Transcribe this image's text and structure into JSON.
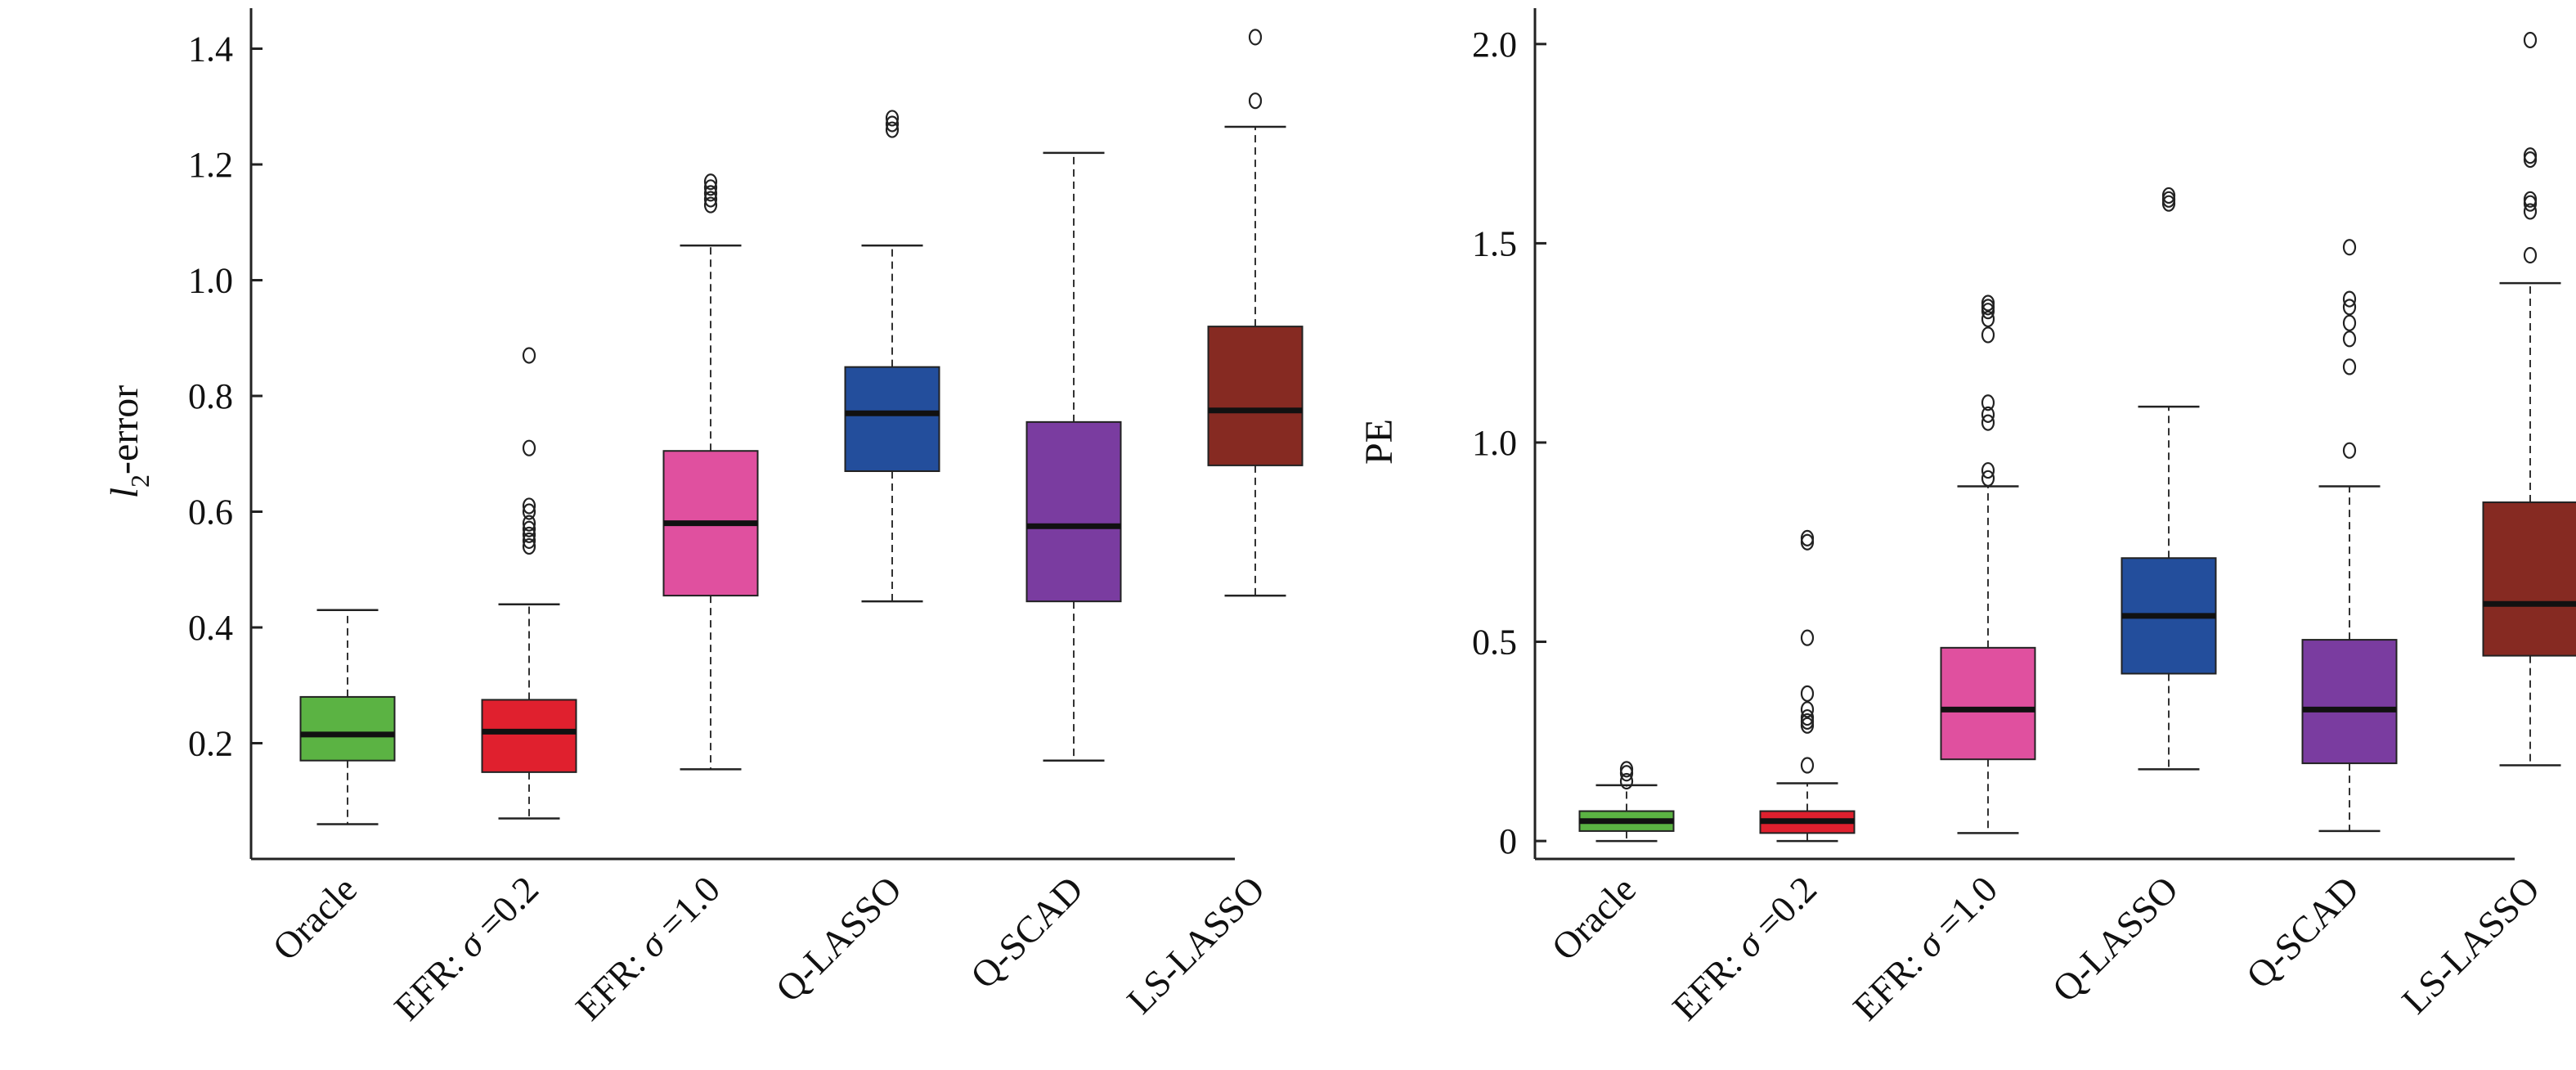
{
  "chart_data": [
    {
      "type": "box",
      "ylabel": "l",
      "ylabel_subscript": "2",
      "ylabel_suffix": "-error",
      "ylim": [
        0.0,
        1.47
      ],
      "yticks": [
        0.2,
        0.4,
        0.6,
        0.8,
        1.0,
        1.2,
        1.4
      ],
      "ytick_labels": [
        "0.2",
        "0.4",
        "0.6",
        "0.8",
        "1.0",
        "1.2",
        "1.4"
      ],
      "categories": [
        {
          "prefix": "Oracle",
          "sigma": "",
          "suffix": ""
        },
        {
          "prefix": "EFR: ",
          "sigma": "σ",
          "suffix": " =0.2"
        },
        {
          "prefix": "EFR: ",
          "sigma": "σ",
          "suffix": " =1.0"
        },
        {
          "prefix": "Q-LASSO",
          "sigma": "",
          "suffix": ""
        },
        {
          "prefix": "Q-SCAD",
          "sigma": "",
          "suffix": ""
        },
        {
          "prefix": "LS-LASSO",
          "sigma": "",
          "suffix": ""
        }
      ],
      "boxes": [
        {
          "color": "#5bb343",
          "whisker_low": 0.06,
          "q1": 0.17,
          "median": 0.215,
          "q3": 0.28,
          "whisker_high": 0.43,
          "outliers": []
        },
        {
          "color": "#e0202e",
          "whisker_low": 0.07,
          "q1": 0.15,
          "median": 0.22,
          "q3": 0.275,
          "whisker_high": 0.44,
          "outliers": [
            0.54,
            0.55,
            0.56,
            0.57,
            0.58,
            0.6,
            0.61,
            0.71,
            0.87
          ]
        },
        {
          "color": "#e0509f",
          "whisker_low": 0.155,
          "q1": 0.455,
          "median": 0.58,
          "q3": 0.705,
          "whisker_high": 1.06,
          "outliers": [
            1.13,
            1.14,
            1.15,
            1.16,
            1.17
          ]
        },
        {
          "color": "#234e9c",
          "whisker_low": 0.445,
          "q1": 0.67,
          "median": 0.77,
          "q3": 0.85,
          "whisker_high": 1.06,
          "outliers": [
            1.26,
            1.27,
            1.28
          ]
        },
        {
          "color": "#7a3ca0",
          "whisker_low": 0.17,
          "q1": 0.445,
          "median": 0.575,
          "q3": 0.755,
          "whisker_high": 1.22,
          "outliers": []
        },
        {
          "color": "#862a22",
          "whisker_low": 0.455,
          "q1": 0.68,
          "median": 0.775,
          "q3": 0.92,
          "whisker_high": 1.265,
          "outliers": [
            1.31,
            1.42
          ]
        }
      ]
    },
    {
      "type": "box",
      "ylabel": "PE",
      "ylabel_subscript": "",
      "ylabel_suffix": "",
      "ylim": [
        -0.045,
        2.09
      ],
      "yticks": [
        0.0,
        0.5,
        1.0,
        1.5,
        2.0
      ],
      "ytick_labels": [
        "0",
        "0.5",
        "1.0",
        "1.5",
        "2.0"
      ],
      "categories": [
        {
          "prefix": "Oracle",
          "sigma": "",
          "suffix": ""
        },
        {
          "prefix": "EFR: ",
          "sigma": "σ",
          "suffix": " =0.2"
        },
        {
          "prefix": "EFR: ",
          "sigma": "σ",
          "suffix": " =1.0"
        },
        {
          "prefix": "Q-LASSO",
          "sigma": "",
          "suffix": ""
        },
        {
          "prefix": "Q-SCAD",
          "sigma": "",
          "suffix": ""
        },
        {
          "prefix": "LS-LASSO",
          "sigma": "",
          "suffix": ""
        }
      ],
      "boxes": [
        {
          "color": "#5bb343",
          "whisker_low": 0.0,
          "q1": 0.025,
          "median": 0.05,
          "q3": 0.075,
          "whisker_high": 0.14,
          "outliers": [
            0.15,
            0.17,
            0.18
          ]
        },
        {
          "color": "#e0202e",
          "whisker_low": 0.0,
          "q1": 0.02,
          "median": 0.05,
          "q3": 0.075,
          "whisker_high": 0.145,
          "outliers": [
            0.19,
            0.29,
            0.3,
            0.31,
            0.33,
            0.37,
            0.51,
            0.75,
            0.76
          ]
        },
        {
          "color": "#e0509f",
          "whisker_low": 0.02,
          "q1": 0.205,
          "median": 0.33,
          "q3": 0.485,
          "whisker_high": 0.89,
          "outliers": [
            0.91,
            0.93,
            1.05,
            1.07,
            1.1,
            1.27,
            1.31,
            1.33,
            1.34,
            1.35
          ]
        },
        {
          "color": "#234e9c",
          "whisker_low": 0.18,
          "q1": 0.42,
          "median": 0.565,
          "q3": 0.71,
          "whisker_high": 1.09,
          "outliers": [
            1.6,
            1.61,
            1.62
          ]
        },
        {
          "color": "#7a3ca0",
          "whisker_low": 0.025,
          "q1": 0.195,
          "median": 0.33,
          "q3": 0.505,
          "whisker_high": 0.89,
          "outliers": [
            0.98,
            1.19,
            1.26,
            1.3,
            1.34,
            1.36,
            1.49
          ]
        },
        {
          "color": "#862a22",
          "whisker_low": 0.19,
          "q1": 0.465,
          "median": 0.595,
          "q3": 0.85,
          "whisker_high": 1.4,
          "outliers": [
            1.47,
            1.58,
            1.6,
            1.61,
            1.71,
            1.72,
            2.01
          ]
        }
      ]
    }
  ]
}
